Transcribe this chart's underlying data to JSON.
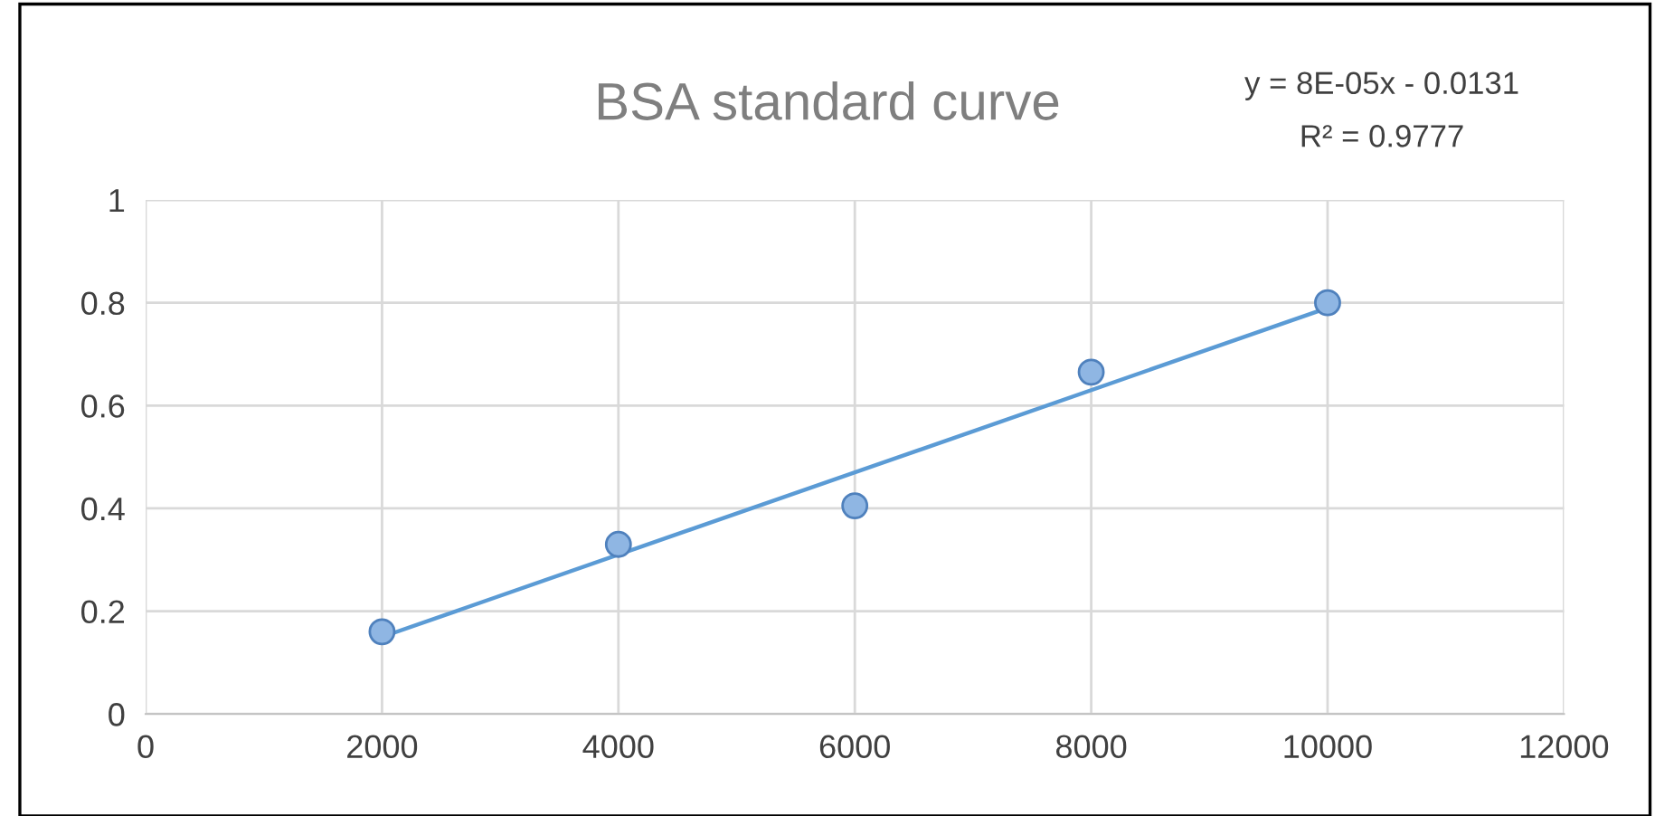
{
  "chart_data": {
    "type": "scatter",
    "title": "BSA standard curve",
    "annotations": [
      "y = 8E-05x - 0.0131",
      "R² = 0.9777"
    ],
    "series": [
      {
        "color": "#8fb6e3",
        "x": [
          2000,
          4000,
          6000,
          8000,
          10000
        ],
        "values": [
          0.16,
          0.33,
          0.405,
          0.665,
          0.8
        ],
        "marker": "circle"
      },
      {
        "type": "line",
        "color": "#5b9bd5",
        "x": [
          2000,
          10000
        ],
        "values": [
          0.15,
          0.79
        ]
      }
    ],
    "xlim": [
      0,
      12000
    ],
    "xticks": [
      0,
      2000,
      4000,
      6000,
      8000,
      10000,
      12000
    ],
    "ylim": [
      0,
      1
    ],
    "yticks": [
      0,
      0.2,
      0.4,
      0.6,
      0.8,
      1
    ],
    "grid": true
  }
}
